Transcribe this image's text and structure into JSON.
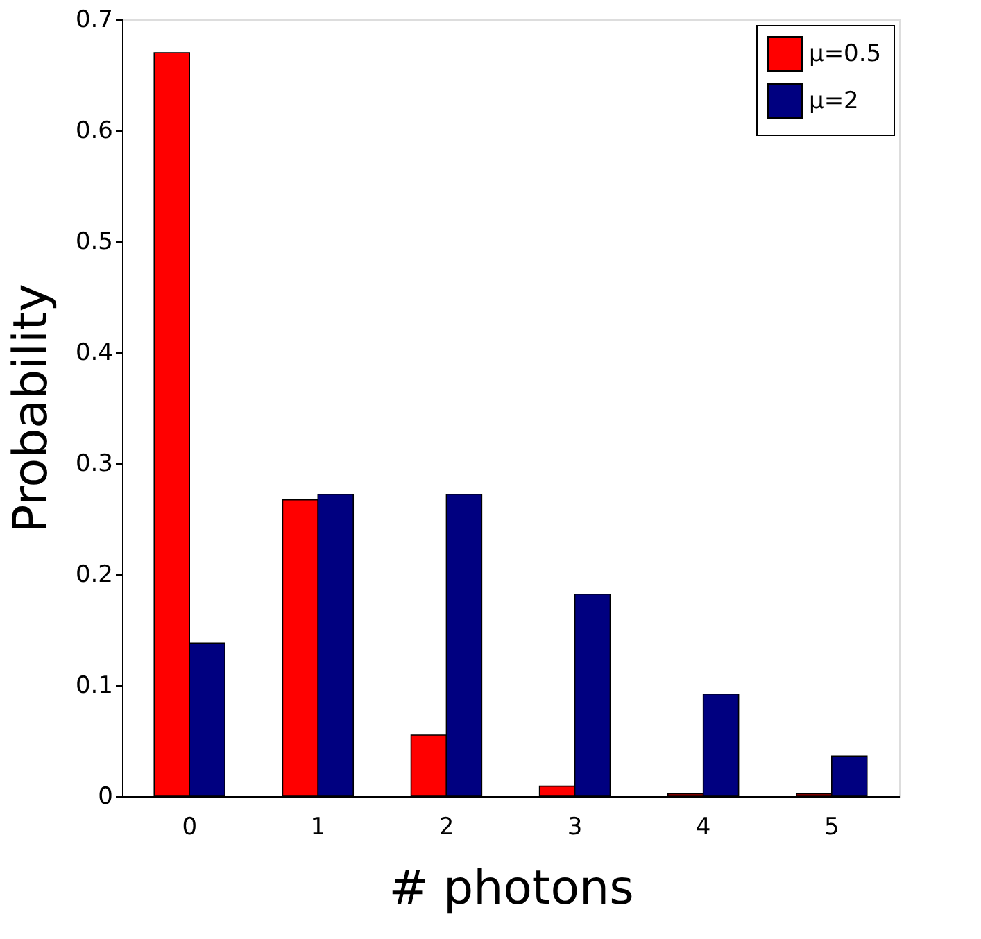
{
  "chart_data": {
    "type": "bar",
    "xlabel": "# photons",
    "ylabel": "Probability",
    "categories": [
      "0",
      "1",
      "2",
      "3",
      "4",
      "5"
    ],
    "series": [
      {
        "name": "μ=0.5",
        "color": "#ff0000",
        "values": [
          0.67,
          0.267,
          0.055,
          0.009,
          0.002,
          0.002
        ]
      },
      {
        "name": "μ=2",
        "color": "#000080",
        "values": [
          0.138,
          0.272,
          0.272,
          0.182,
          0.092,
          0.036
        ]
      }
    ],
    "ylim": [
      0,
      0.7
    ],
    "yticks": [
      0,
      0.1,
      0.2,
      0.3,
      0.4,
      0.5,
      0.6,
      0.7
    ],
    "legend": "top right",
    "grid": false
  }
}
